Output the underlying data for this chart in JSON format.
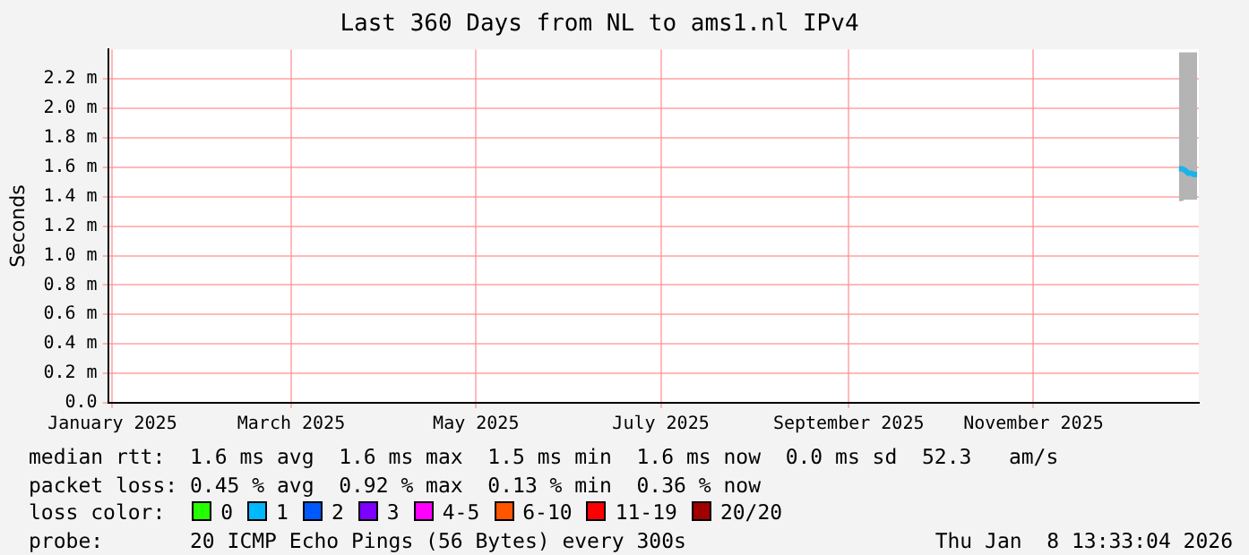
{
  "chart_data": {
    "type": "line",
    "title": "Last 360 Days from NL to ams1.nl IPv4",
    "ylabel": "Seconds",
    "x": [
      "2026-01-02",
      "2026-01-03",
      "2026-01-04",
      "2026-01-05",
      "2026-01-06",
      "2026-01-07",
      "2026-01-08"
    ],
    "series": [
      {
        "color": "#1ab4e8",
        "values": [
          1.59,
          1.59,
          1.58,
          1.56,
          1.56,
          1.55,
          1.55
        ],
        "lower": [
          1.37,
          1.37,
          1.38,
          1.38,
          1.38,
          1.38,
          1.38
        ],
        "upper": [
          2.38,
          2.38,
          2.38,
          2.38,
          2.38,
          2.38,
          2.38
        ]
      }
    ],
    "xlim": [
      "2025-01-13T13:33",
      "2026-01-08T13:33"
    ],
    "xticks": [
      {
        "value": "2025-01-15",
        "label": "January 2025"
      },
      {
        "value": "2025-03-15",
        "label": "March 2025"
      },
      {
        "value": "2025-05-15",
        "label": "May 2025"
      },
      {
        "value": "2025-07-15",
        "label": "July 2025"
      },
      {
        "value": "2025-09-15",
        "label": "September 2025"
      },
      {
        "value": "2025-11-15",
        "label": "November 2025"
      }
    ],
    "ylim": [
      0,
      2.4
    ],
    "yticks": [
      {
        "value": 0,
        "label": "0.0"
      },
      {
        "value": 0.2,
        "label": "0.2 m"
      },
      {
        "value": 0.4,
        "label": "0.4 m"
      },
      {
        "value": 0.6,
        "label": "0.6 m"
      },
      {
        "value": 0.8,
        "label": "0.8 m"
      },
      {
        "value": 1,
        "label": "1.0 m"
      },
      {
        "value": 1.2,
        "label": "1.2 m"
      },
      {
        "value": 1.4,
        "label": "1.4 m"
      },
      {
        "value": 1.6,
        "label": "1.6 m"
      },
      {
        "value": 1.8,
        "label": "1.8 m"
      },
      {
        "value": 2,
        "label": "2.0 m"
      },
      {
        "value": 2.2,
        "label": "2.2 m"
      }
    ],
    "grid": true,
    "legend": false,
    "marker": "none",
    "line_style": "solid",
    "annotations": [
      "median rtt:  1.6 ms avg  1.6 ms max  1.5 ms min  1.6 ms now  0.0 ms sd  52.3   am/s",
      "packet loss: 0.45 % avg  0.92 % max  0.13 % min  0.36 % now",
      "loss color:",
      "0",
      "1",
      "2",
      "3",
      "4-5",
      "6-10",
      "11-19",
      "20/20",
      "probe:       20 ICMP Echo Pings (56 Bytes) every 300s",
      "Thu Jan  8 13:33:04 2026"
    ]
  }
}
